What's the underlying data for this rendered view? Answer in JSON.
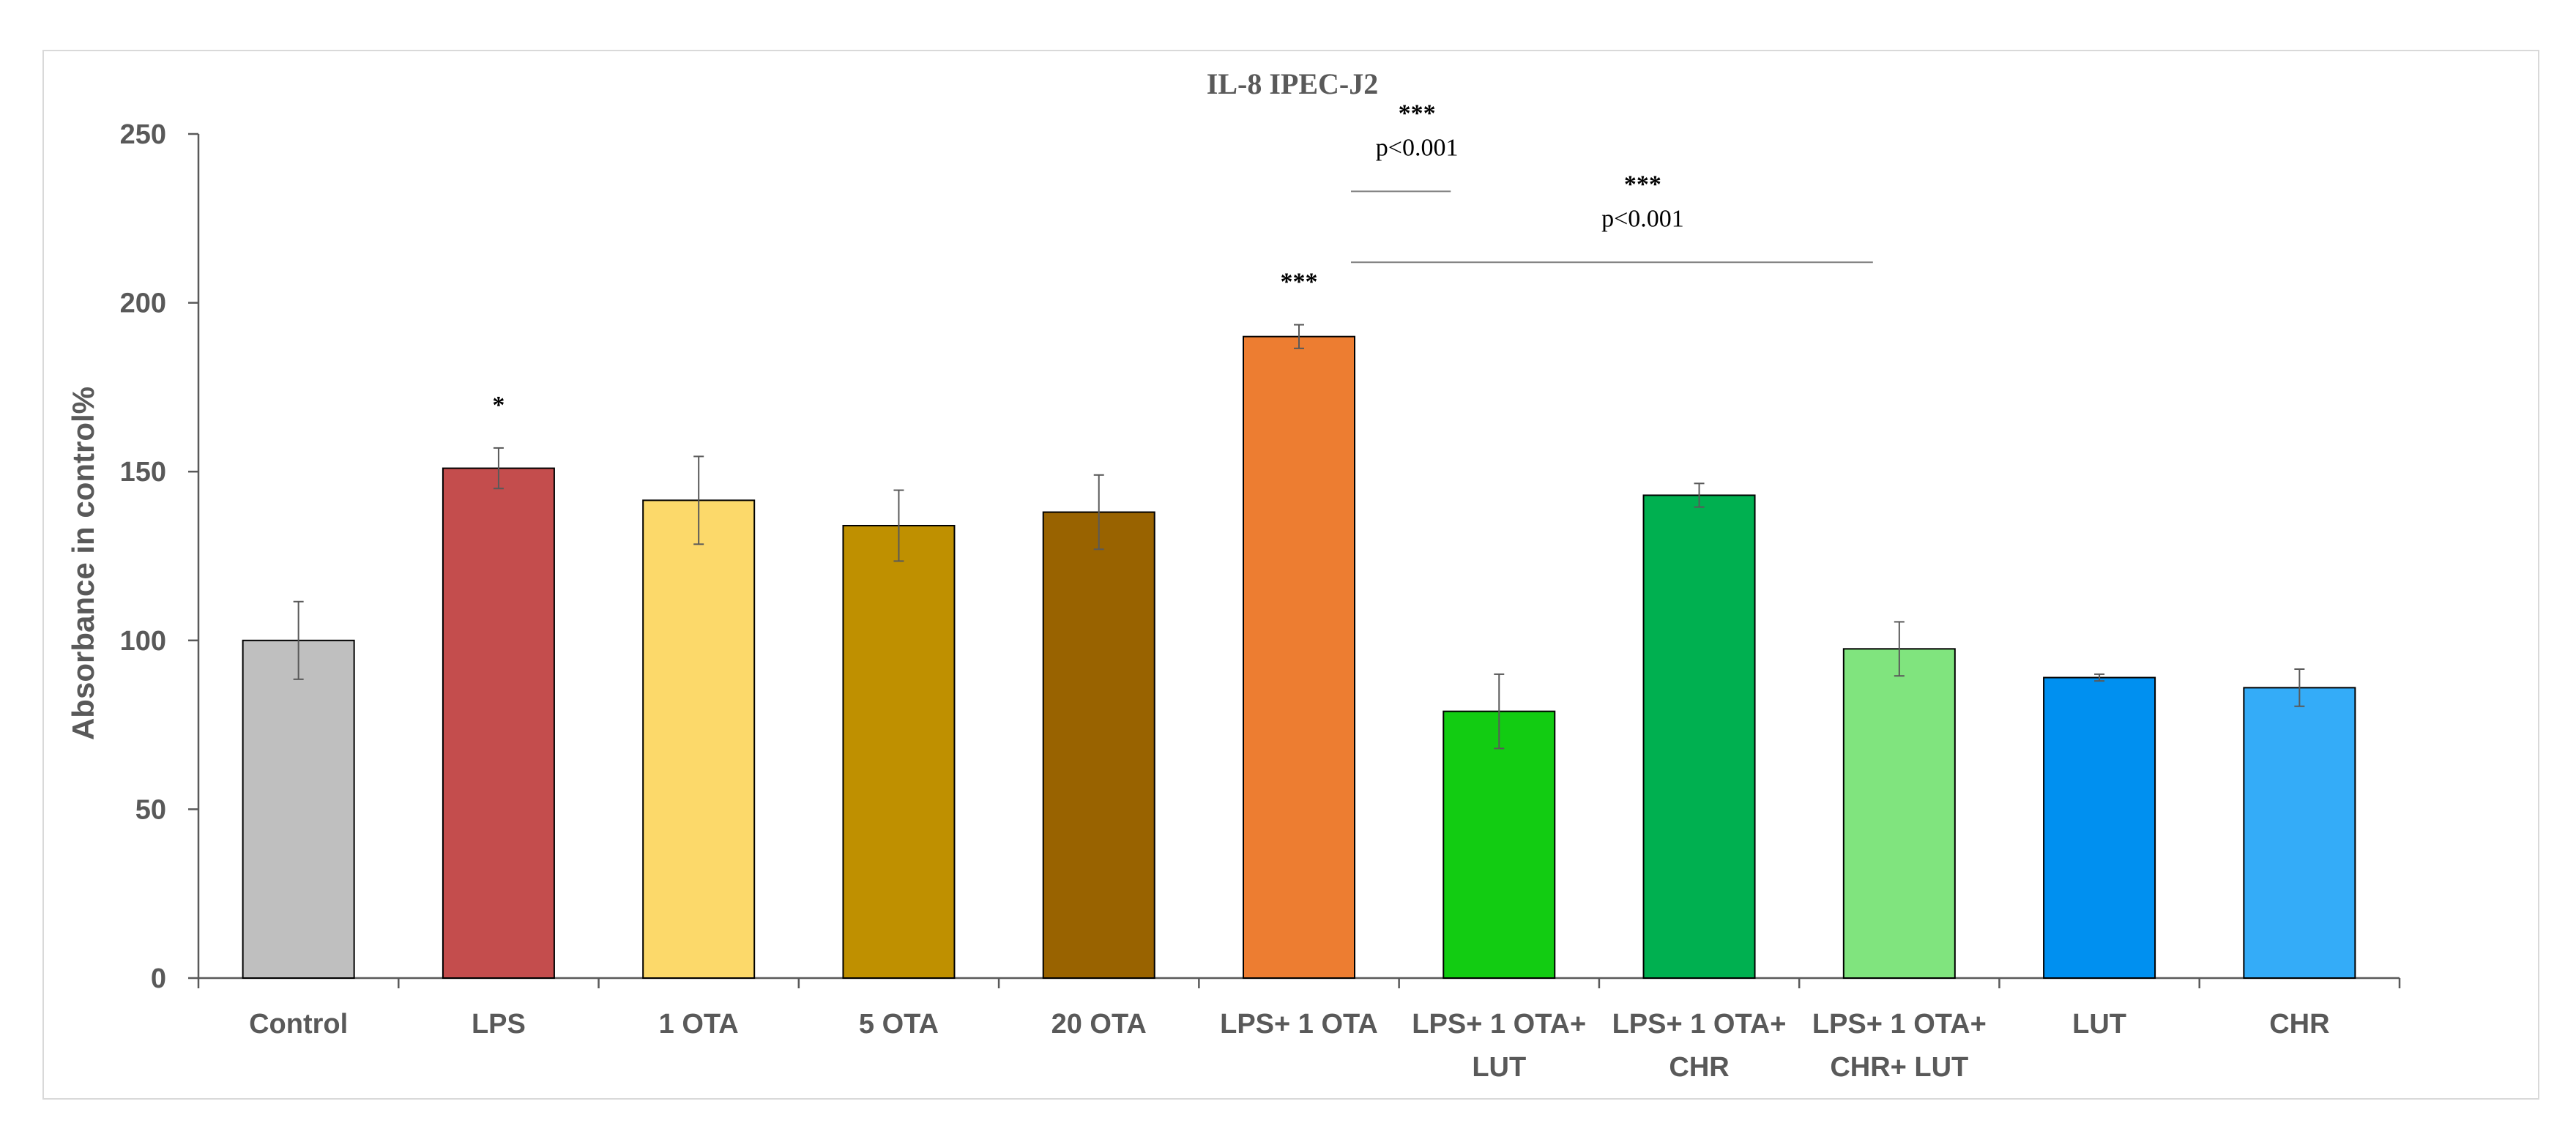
{
  "chart_data": {
    "type": "bar",
    "title": "IL-8 IPEC-J2",
    "xlabel": "",
    "ylabel": "Absorbance in control%",
    "ylim": [
      0,
      250
    ],
    "yticks": [
      0,
      50,
      100,
      150,
      200,
      250
    ],
    "grid": false,
    "categories": [
      [
        "Control"
      ],
      [
        "LPS"
      ],
      [
        "1 OTA"
      ],
      [
        "5 OTA"
      ],
      [
        "20 OTA"
      ],
      [
        "LPS+ 1 OTA"
      ],
      [
        "LPS+ 1 OTA+",
        "LUT"
      ],
      [
        "LPS+ 1 OTA+",
        "CHR"
      ],
      [
        "LPS+ 1 OTA+",
        "CHR+ LUT"
      ],
      [
        "LUT"
      ],
      [
        "CHR"
      ]
    ],
    "values": [
      100,
      151,
      141.5,
      134,
      138,
      190,
      79,
      143,
      97.5,
      89,
      86
    ],
    "errors": [
      11.5,
      6,
      13,
      10.5,
      11,
      3.5,
      11,
      3.5,
      8,
      1,
      5.5
    ],
    "colors": [
      "#bfbfbf",
      "#c44d4d",
      "#fcd96a",
      "#bf9000",
      "#996300",
      "#ed7d31",
      "#12cc12",
      "#00b050",
      "#80e47e",
      "#0090f0",
      "#34acf8"
    ],
    "bar_annotations": [
      {
        "bar": 1,
        "text": "*"
      },
      {
        "bar": 5,
        "text": "***"
      }
    ],
    "comparisons": [
      {
        "from": 5,
        "to": 6,
        "stars": "***",
        "p": "p<0.001",
        "level": 233
      },
      {
        "from": 5,
        "to": 8,
        "stars": "***",
        "p": "p<0.001",
        "level": 212
      }
    ]
  }
}
